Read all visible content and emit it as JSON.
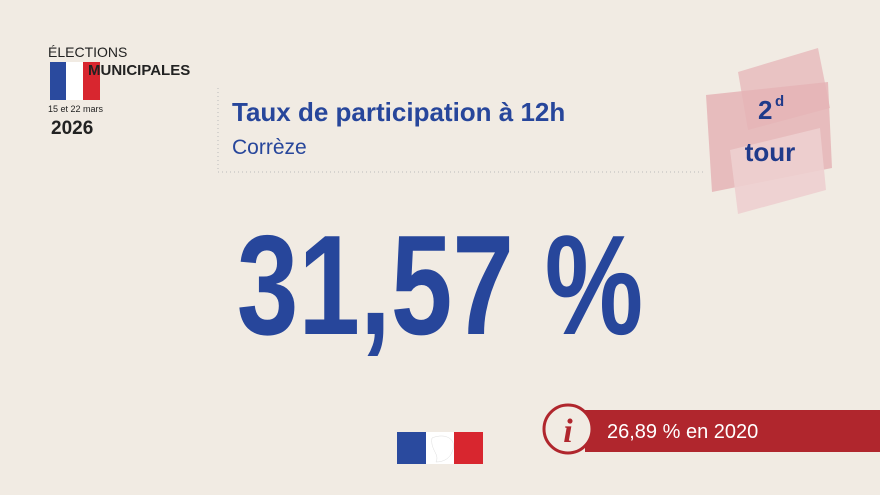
{
  "logo": {
    "line1": "ÉLECTIONS",
    "line2": "MUNICIPALES",
    "dates": "15 et 22 mars",
    "year": "2026"
  },
  "header": {
    "title": "Taux de participation à 12h",
    "subtitle": "Corrèze"
  },
  "badge": {
    "number": "2",
    "suffix": "d",
    "word": "tour"
  },
  "main_value": "31,57 %",
  "info": {
    "text": "26,89 % en 2020"
  }
}
